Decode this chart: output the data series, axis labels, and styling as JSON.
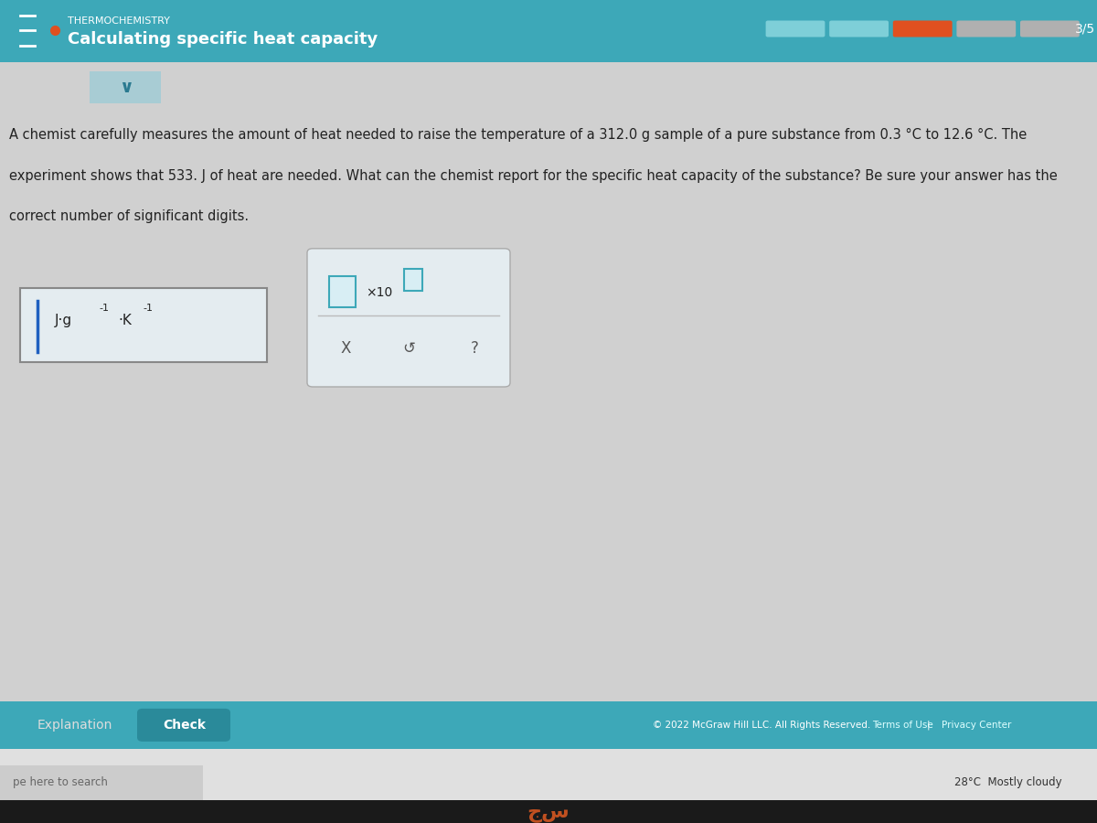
{
  "header_bg": "#3da8b8",
  "header_title_small": "THERMOCHEMISTRY",
  "header_title_big": "Calculating specific heat capacity",
  "body_bg": "#d0d0d0",
  "body_text_line1": "A chemist carefully measures the amount of heat needed to raise the temperature of a 312.0 g sample of a pure substance from 0.3 °C to 12.6 °C. The",
  "body_text_line2": "experiment shows that 533. J of heat are needed. What can the chemist report for the specific heat capacity of the substance? Be sure your answer has the",
  "body_text_line3": "correct number of significant digits.",
  "footer_copyright": "© 2022 McGraw Hill LLC. All Rights Reserved.",
  "footer_terms": "Terms of Use",
  "footer_pipe": "|",
  "footer_privacy": "Privacy Center",
  "taskbar_text": "pe here to search",
  "taskbar_weather": "28°C  Mostly cloudy",
  "progress_text": "3/5",
  "explanation_btn": "Explanation",
  "check_btn": "Check",
  "body_text_color": "#222222",
  "header_text_color": "#ffffff",
  "footer_bg": "#3da8b8",
  "taskbar_bg": "#e0e0e0"
}
